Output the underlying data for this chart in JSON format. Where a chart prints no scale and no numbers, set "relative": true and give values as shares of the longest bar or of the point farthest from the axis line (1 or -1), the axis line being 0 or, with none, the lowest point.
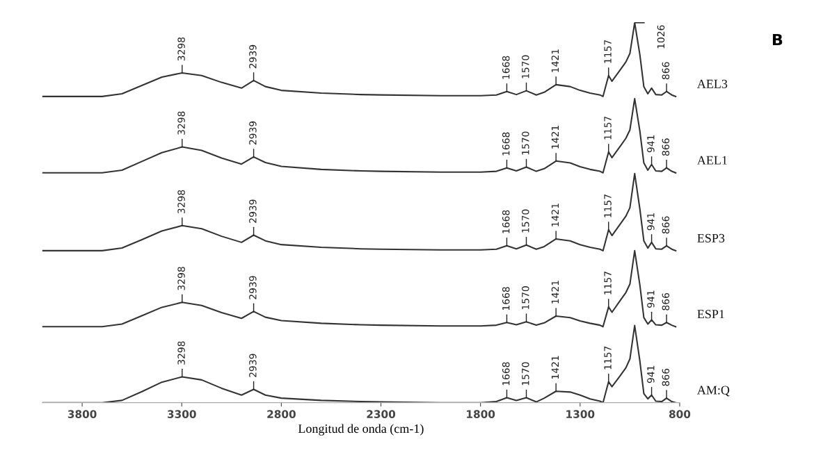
{
  "chart_data": {
    "type": "line",
    "relative": true,
    "xlabel": "Longitud de onda (cm-1)",
    "xlim": [
      4000,
      800
    ],
    "xticks": [
      3800,
      3300,
      2800,
      2300,
      1800,
      1300,
      800
    ],
    "tick_labels": "x",
    "grid": false,
    "legend": false,
    "marker": "none",
    "line_style": "solid",
    "x": [
      4000,
      3700,
      3600,
      3500,
      3400,
      3298,
      3200,
      3100,
      3000,
      2939,
      2880,
      2800,
      2600,
      2400,
      2300,
      2000,
      1800,
      1720,
      1668,
      1620,
      1570,
      1520,
      1480,
      1421,
      1350,
      1300,
      1250,
      1200,
      1185,
      1157,
      1140,
      1100,
      1070,
      1050,
      1026,
      1000,
      980,
      960,
      941,
      920,
      890,
      866,
      840,
      820
    ],
    "series": [
      {
        "name": "AEL3",
        "color": "#333333",
        "values": [
          0.806,
          0.806,
          0.813,
          0.835,
          0.857,
          0.868,
          0.861,
          0.843,
          0.828,
          0.848,
          0.832,
          0.822,
          0.815,
          0.811,
          0.81,
          0.808,
          0.808,
          0.81,
          0.819,
          0.811,
          0.821,
          0.81,
          0.817,
          0.837,
          0.832,
          0.822,
          0.815,
          0.81,
          0.806,
          0.861,
          0.846,
          0.875,
          0.897,
          0.919,
          1.0,
          0.916,
          0.832,
          0.813,
          0.828,
          0.811,
          0.81,
          0.819,
          0.81,
          0.806
        ]
      },
      {
        "name": "AEL1",
        "color": "#333333",
        "values": [
          0.605,
          0.605,
          0.612,
          0.635,
          0.658,
          0.673,
          0.664,
          0.644,
          0.628,
          0.647,
          0.632,
          0.622,
          0.614,
          0.61,
          0.609,
          0.607,
          0.607,
          0.609,
          0.618,
          0.61,
          0.62,
          0.609,
          0.616,
          0.636,
          0.631,
          0.621,
          0.614,
          0.609,
          0.605,
          0.66,
          0.645,
          0.674,
          0.696,
          0.718,
          0.8,
          0.715,
          0.631,
          0.612,
          0.627,
          0.61,
          0.609,
          0.618,
          0.609,
          0.605
        ]
      },
      {
        "name": "ESP3",
        "color": "#333333",
        "values": [
          0.4,
          0.4,
          0.407,
          0.429,
          0.452,
          0.466,
          0.458,
          0.438,
          0.422,
          0.441,
          0.426,
          0.416,
          0.409,
          0.405,
          0.404,
          0.402,
          0.402,
          0.404,
          0.413,
          0.405,
          0.415,
          0.404,
          0.411,
          0.431,
          0.426,
          0.416,
          0.409,
          0.404,
          0.4,
          0.455,
          0.44,
          0.469,
          0.491,
          0.513,
          0.603,
          0.51,
          0.426,
          0.407,
          0.422,
          0.405,
          0.404,
          0.413,
          0.404,
          0.4
        ]
      },
      {
        "name": "ESP1",
        "color": "#333333",
        "values": [
          0.2,
          0.2,
          0.207,
          0.229,
          0.251,
          0.264,
          0.256,
          0.237,
          0.222,
          0.24,
          0.225,
          0.216,
          0.209,
          0.205,
          0.204,
          0.202,
          0.202,
          0.204,
          0.211,
          0.205,
          0.213,
          0.204,
          0.21,
          0.228,
          0.224,
          0.215,
          0.209,
          0.204,
          0.2,
          0.252,
          0.238,
          0.268,
          0.29,
          0.312,
          0.4,
          0.31,
          0.224,
          0.207,
          0.218,
          0.205,
          0.204,
          0.211,
          0.204,
          0.2
        ]
      },
      {
        "name": "AM:Q",
        "color": "#333333",
        "values": [
          0,
          0,
          0.006,
          0.029,
          0.054,
          0.068,
          0.06,
          0.038,
          0.02,
          0.035,
          0.02,
          0.012,
          0.006,
          0.003,
          0.002,
          0,
          0,
          0.003,
          0.013,
          0.006,
          0.013,
          0.002,
          0.012,
          0.03,
          0.028,
          0.02,
          0.01,
          0.004,
          0,
          0.055,
          0.042,
          0.07,
          0.092,
          0.115,
          0.203,
          0.11,
          0.024,
          0.01,
          0.02,
          0.004,
          0.003,
          0.012,
          0.003,
          0
        ]
      }
    ],
    "annotations": [
      "B",
      {
        "text": "3298",
        "x": 3298,
        "y": 0.868
      },
      {
        "text": "2939",
        "x": 2939,
        "y": 0.848
      },
      {
        "text": "1668",
        "x": 1668,
        "y": 0.819
      },
      {
        "text": "1570",
        "x": 1570,
        "y": 0.821
      },
      {
        "text": "1421",
        "x": 1421,
        "y": 0.837
      },
      {
        "text": "1157",
        "x": 1157,
        "y": 0.861
      },
      {
        "text": "1026",
        "x": 1026,
        "y": 1.0
      },
      {
        "text": "866",
        "x": 866,
        "y": 0.819
      },
      {
        "text": "3298",
        "x": 3298,
        "y": 0.673
      },
      {
        "text": "2939",
        "x": 2939,
        "y": 0.647
      },
      {
        "text": "1668",
        "x": 1668,
        "y": 0.618
      },
      {
        "text": "1570",
        "x": 1570,
        "y": 0.62
      },
      {
        "text": "1421",
        "x": 1421,
        "y": 0.636
      },
      {
        "text": "1157",
        "x": 1157,
        "y": 0.66
      },
      {
        "text": "941",
        "x": 941,
        "y": 0.627
      },
      {
        "text": "866",
        "x": 866,
        "y": 0.618
      },
      {
        "text": "3298",
        "x": 3298,
        "y": 0.466
      },
      {
        "text": "2939",
        "x": 2939,
        "y": 0.441
      },
      {
        "text": "1668",
        "x": 1668,
        "y": 0.413
      },
      {
        "text": "1570",
        "x": 1570,
        "y": 0.415
      },
      {
        "text": "1421",
        "x": 1421,
        "y": 0.431
      },
      {
        "text": "1157",
        "x": 1157,
        "y": 0.455
      },
      {
        "text": "941",
        "x": 941,
        "y": 0.422
      },
      {
        "text": "866",
        "x": 866,
        "y": 0.413
      },
      {
        "text": "3298",
        "x": 3298,
        "y": 0.264
      },
      {
        "text": "2939",
        "x": 2939,
        "y": 0.24
      },
      {
        "text": "1668",
        "x": 1668,
        "y": 0.211
      },
      {
        "text": "1570",
        "x": 1570,
        "y": 0.213
      },
      {
        "text": "1421",
        "x": 1421,
        "y": 0.228
      },
      {
        "text": "1157",
        "x": 1157,
        "y": 0.252
      },
      {
        "text": "941",
        "x": 941,
        "y": 0.218
      },
      {
        "text": "866",
        "x": 866,
        "y": 0.211
      },
      {
        "text": "3298",
        "x": 3298,
        "y": 0.068
      },
      {
        "text": "2939",
        "x": 2939,
        "y": 0.035
      },
      {
        "text": "1668",
        "x": 1668,
        "y": 0.013
      },
      {
        "text": "1570",
        "x": 1570,
        "y": 0.013
      },
      {
        "text": "1421",
        "x": 1421,
        "y": 0.03
      },
      {
        "text": "1157",
        "x": 1157,
        "y": 0.055
      },
      {
        "text": "941",
        "x": 941,
        "y": 0.02
      },
      {
        "text": "866",
        "x": 866,
        "y": 0.012
      }
    ]
  }
}
